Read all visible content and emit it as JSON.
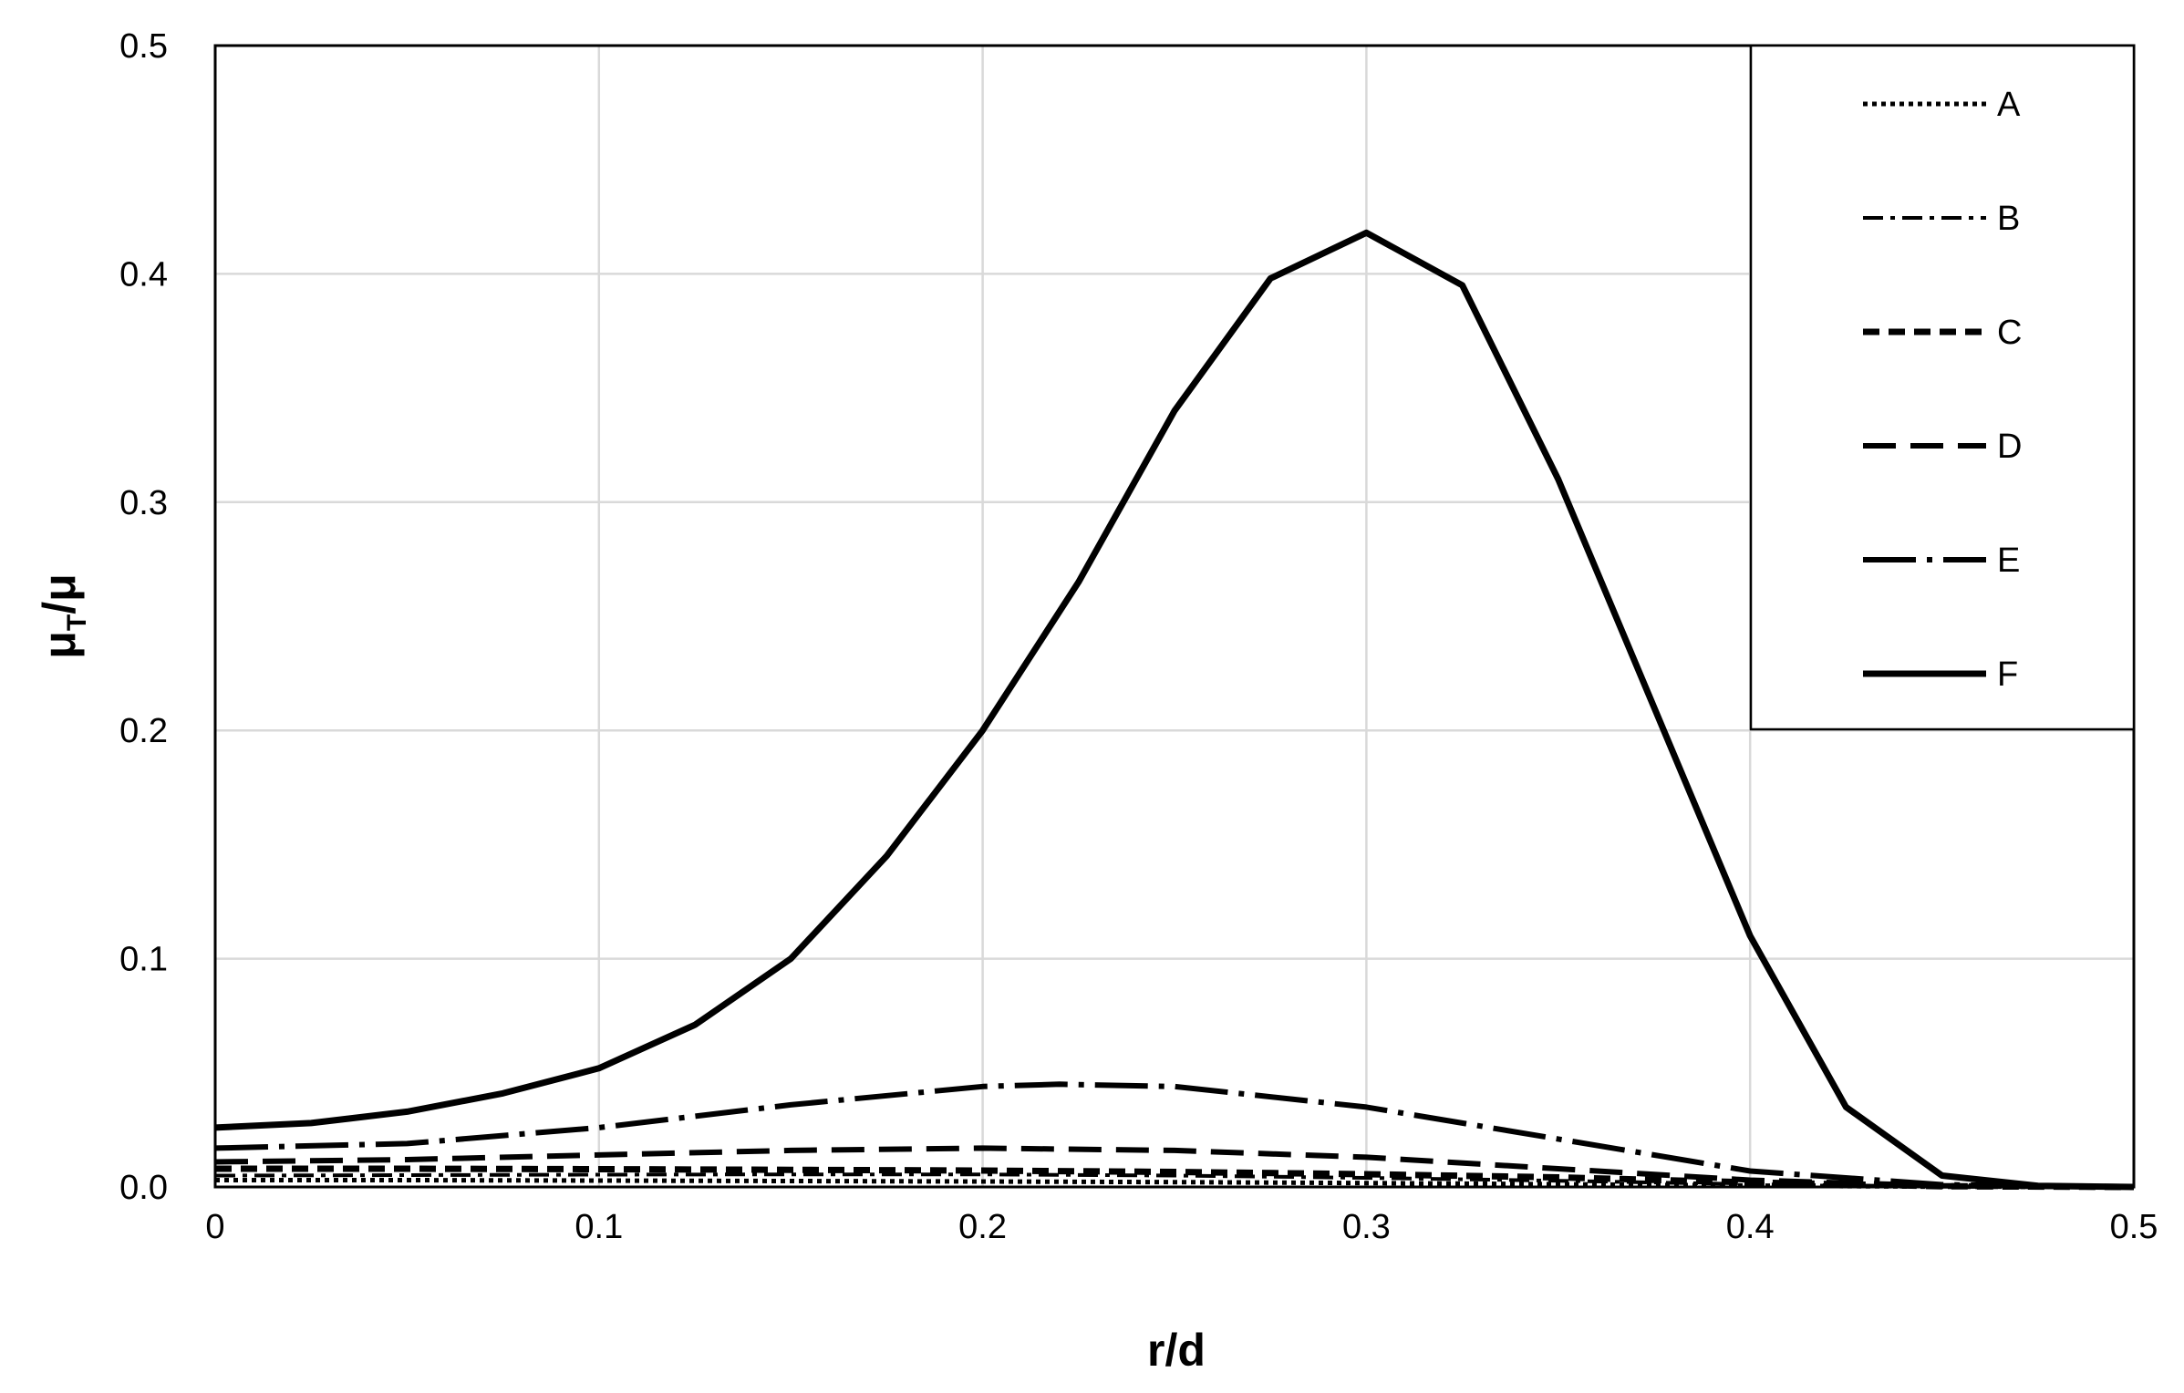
{
  "chart_data": {
    "type": "line",
    "title": "",
    "xlabel": "r/d",
    "ylabel_main": "μ",
    "ylabel_sub": "T",
    "ylabel_tail": "/μ",
    "xlim": [
      0,
      0.5
    ],
    "ylim": [
      0,
      0.5
    ],
    "x_ticks": [
      "0",
      "0.1",
      "0.2",
      "0.3",
      "0.4",
      "0.5"
    ],
    "y_ticks": [
      "0.0",
      "0.1",
      "0.2",
      "0.3",
      "0.4",
      "0.5"
    ],
    "grid": true,
    "legend_position": "top-right",
    "line_color": "#000000",
    "grid_color": "#d9d9d9",
    "series": [
      {
        "name": "A",
        "style": "dotted",
        "x": [
          0,
          0.05,
          0.1,
          0.15,
          0.2,
          0.25,
          0.3,
          0.35,
          0.4,
          0.45,
          0.5
        ],
        "y": [
          0.003,
          0.003,
          0.0028,
          0.0026,
          0.0024,
          0.0021,
          0.0017,
          0.0012,
          0.0006,
          0.0001,
          0
        ]
      },
      {
        "name": "B",
        "style": "dash-dot",
        "x": [
          0,
          0.05,
          0.1,
          0.15,
          0.2,
          0.25,
          0.3,
          0.35,
          0.4,
          0.45,
          0.5
        ],
        "y": [
          0.005,
          0.0052,
          0.0054,
          0.0055,
          0.0055,
          0.005,
          0.004,
          0.0027,
          0.0012,
          0.0002,
          0
        ]
      },
      {
        "name": "C",
        "style": "short-dash",
        "x": [
          0,
          0.05,
          0.1,
          0.15,
          0.2,
          0.25,
          0.3,
          0.35,
          0.4,
          0.45,
          0.5
        ],
        "y": [
          0.008,
          0.008,
          0.0078,
          0.0075,
          0.0072,
          0.0066,
          0.0056,
          0.0042,
          0.002,
          0.0003,
          0
        ]
      },
      {
        "name": "D",
        "style": "dash",
        "x": [
          0,
          0.05,
          0.1,
          0.15,
          0.2,
          0.25,
          0.3,
          0.35,
          0.4,
          0.45,
          0.5
        ],
        "y": [
          0.011,
          0.012,
          0.014,
          0.016,
          0.017,
          0.016,
          0.013,
          0.008,
          0.003,
          0.0005,
          0
        ]
      },
      {
        "name": "E",
        "style": "long-dash-dot",
        "x": [
          0,
          0.05,
          0.1,
          0.15,
          0.2,
          0.22,
          0.25,
          0.3,
          0.35,
          0.4,
          0.45,
          0.5
        ],
        "y": [
          0.017,
          0.019,
          0.026,
          0.036,
          0.044,
          0.045,
          0.044,
          0.035,
          0.021,
          0.007,
          0.001,
          0
        ]
      },
      {
        "name": "F",
        "style": "solid",
        "x": [
          0,
          0.025,
          0.05,
          0.075,
          0.1,
          0.125,
          0.15,
          0.175,
          0.2,
          0.225,
          0.25,
          0.275,
          0.3,
          0.325,
          0.35,
          0.375,
          0.4,
          0.425,
          0.45,
          0.475,
          0.5
        ],
        "y": [
          0.026,
          0.028,
          0.033,
          0.041,
          0.052,
          0.071,
          0.1,
          0.145,
          0.2,
          0.265,
          0.34,
          0.398,
          0.418,
          0.395,
          0.31,
          0.21,
          0.11,
          0.035,
          0.005,
          0.0005,
          0
        ]
      }
    ]
  }
}
